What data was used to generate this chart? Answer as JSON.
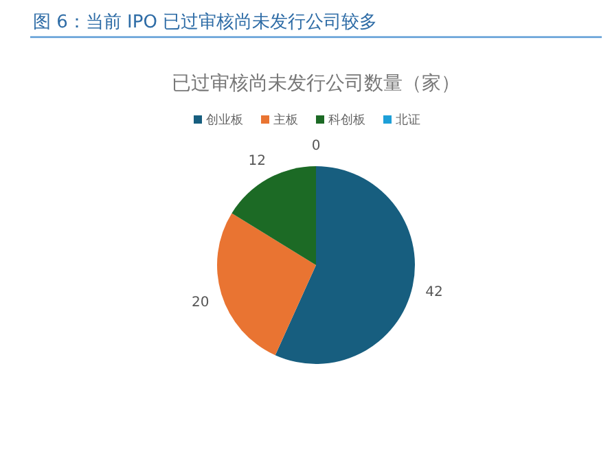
{
  "chart_data": {
    "type": "pie",
    "title": "图 6：当前 IPO 已过审核尚未发行公司较多",
    "subtitle": "已过审核尚未发行公司数量（家）",
    "categories": [
      "创业板",
      "主板",
      "科创板",
      "北证"
    ],
    "values": [
      42,
      20,
      12,
      0
    ],
    "colors": [
      "#175e7f",
      "#e97432",
      "#1c6a25",
      "#1d9fd8"
    ],
    "value_labels": [
      "42",
      "20",
      "12",
      "0"
    ],
    "legend": "top"
  }
}
